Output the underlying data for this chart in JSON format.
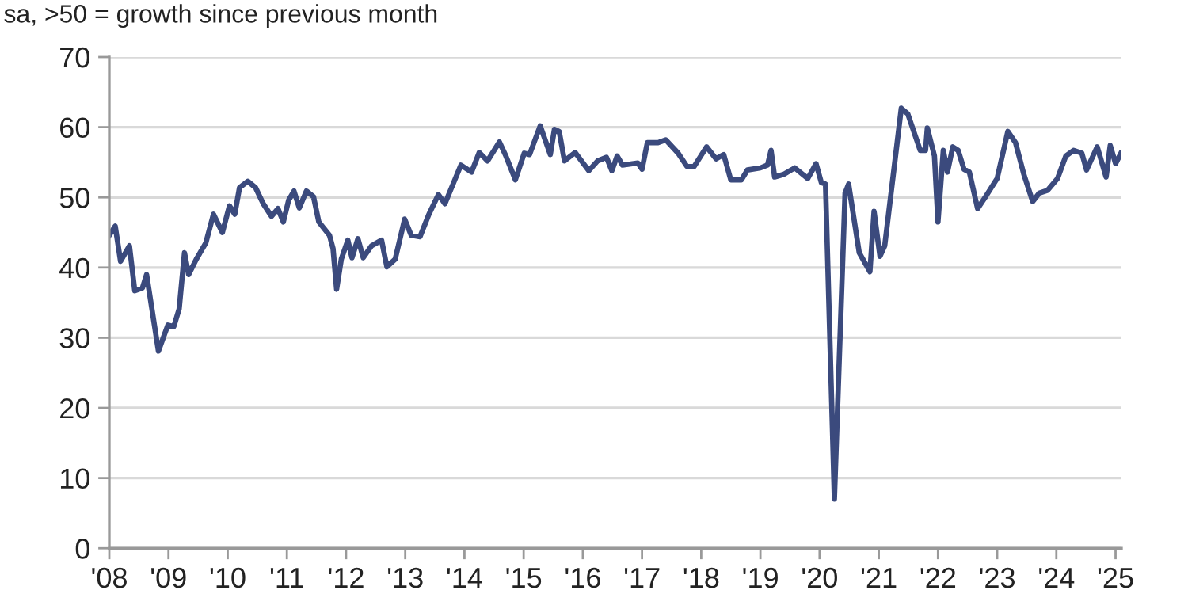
{
  "chart_data": {
    "type": "line",
    "subtitle": "sa, >50 = growth since previous month",
    "x": [
      2008.0,
      2008.1,
      2008.19,
      2008.34,
      2008.43,
      2008.56,
      2008.63,
      2008.83,
      2008.99,
      2009.09,
      2009.18,
      2009.27,
      2009.34,
      2009.47,
      2009.63,
      2009.76,
      2009.91,
      2010.03,
      2010.12,
      2010.2,
      2010.34,
      2010.47,
      2010.6,
      2010.74,
      2010.85,
      2010.94,
      2011.03,
      2011.12,
      2011.21,
      2011.33,
      2011.45,
      2011.54,
      2011.72,
      2011.78,
      2011.84,
      2011.92,
      2012.03,
      2012.1,
      2012.2,
      2012.29,
      2012.43,
      2012.6,
      2012.69,
      2012.83,
      2012.99,
      2013.1,
      2013.25,
      2013.4,
      2013.56,
      2013.67,
      2013.94,
      2014.12,
      2014.25,
      2014.39,
      2014.59,
      2014.7,
      2014.86,
      2015.01,
      2015.1,
      2015.28,
      2015.45,
      2015.52,
      2015.6,
      2015.69,
      2015.87,
      2016.1,
      2016.25,
      2016.4,
      2016.49,
      2016.58,
      2016.67,
      2016.93,
      2017.0,
      2017.09,
      2017.27,
      2017.4,
      2017.61,
      2017.76,
      2017.88,
      2018.09,
      2018.25,
      2018.38,
      2018.5,
      2018.68,
      2018.78,
      2019.0,
      2019.12,
      2019.18,
      2019.24,
      2019.4,
      2019.58,
      2019.8,
      2019.94,
      2020.03,
      2020.1,
      2020.25,
      2020.43,
      2020.49,
      2020.67,
      2020.85,
      2020.92,
      2021.02,
      2021.1,
      2021.38,
      2021.49,
      2021.7,
      2021.79,
      2021.82,
      2021.94,
      2022.0,
      2022.09,
      2022.16,
      2022.25,
      2022.34,
      2022.44,
      2022.53,
      2022.67,
      2022.82,
      2023.0,
      2023.18,
      2023.31,
      2023.45,
      2023.6,
      2023.71,
      2023.85,
      2024.02,
      2024.16,
      2024.29,
      2024.43,
      2024.51,
      2024.69,
      2024.84,
      2024.91,
      2025.0,
      2025.09
    ],
    "series": [
      {
        "color": "#3b4a7d",
        "values": [
          44.6,
          45.9,
          40.9,
          43.1,
          36.7,
          37.1,
          39.0,
          28.1,
          31.8,
          31.6,
          34.1,
          42.1,
          39.0,
          41.2,
          43.5,
          47.6,
          45.0,
          48.8,
          47.6,
          51.4,
          52.3,
          51.4,
          49.1,
          47.3,
          48.4,
          46.5,
          49.6,
          50.9,
          48.5,
          50.9,
          50.1,
          46.5,
          44.6,
          42.7,
          36.9,
          41.2,
          43.9,
          41.4,
          44.1,
          41.4,
          43.1,
          43.9,
          40.1,
          41.2,
          46.9,
          44.6,
          44.4,
          47.6,
          50.4,
          49.1,
          54.6,
          53.6,
          56.4,
          55.2,
          57.9,
          55.9,
          52.5,
          56.3,
          56.1,
          60.2,
          56.1,
          59.7,
          59.4,
          55.2,
          56.4,
          53.8,
          55.2,
          55.7,
          53.8,
          55.9,
          54.6,
          54.9,
          54.0,
          57.8,
          57.8,
          58.2,
          56.3,
          54.4,
          54.4,
          57.2,
          55.5,
          56.1,
          52.5,
          52.5,
          53.9,
          54.2,
          54.6,
          56.7,
          52.9,
          53.3,
          54.2,
          52.7,
          54.8,
          52.1,
          51.9,
          7.0,
          50.6,
          51.9,
          42.1,
          39.4,
          48.0,
          41.6,
          43.1,
          62.7,
          61.9,
          56.7,
          56.7,
          59.9,
          55.9,
          46.5,
          56.7,
          53.6,
          57.2,
          56.7,
          54.0,
          53.6,
          48.4,
          50.3,
          52.7,
          59.4,
          57.8,
          53.3,
          49.4,
          50.6,
          51.0,
          52.7,
          55.9,
          56.7,
          56.3,
          53.9,
          57.2,
          52.9,
          57.4,
          54.8,
          56.3
        ]
      }
    ],
    "xlim": [
      2008,
      2025.1
    ],
    "xticks": [
      {
        "value": 2008,
        "label": "'08"
      },
      {
        "value": 2009,
        "label": "'09"
      },
      {
        "value": 2010,
        "label": "'10"
      },
      {
        "value": 2011,
        "label": "'11"
      },
      {
        "value": 2012,
        "label": "'12"
      },
      {
        "value": 2013,
        "label": "'13"
      },
      {
        "value": 2014,
        "label": "'14"
      },
      {
        "value": 2015,
        "label": "'15"
      },
      {
        "value": 2016,
        "label": "'16"
      },
      {
        "value": 2017,
        "label": "'17"
      },
      {
        "value": 2018,
        "label": "'18"
      },
      {
        "value": 2019,
        "label": "'19"
      },
      {
        "value": 2020,
        "label": "'20"
      },
      {
        "value": 2021,
        "label": "'21"
      },
      {
        "value": 2022,
        "label": "'22"
      },
      {
        "value": 2023,
        "label": "'23"
      },
      {
        "value": 2024,
        "label": "'24"
      },
      {
        "value": 2025,
        "label": "'25"
      }
    ],
    "ylim": [
      0,
      70
    ],
    "yticks": [
      0,
      10,
      20,
      30,
      40,
      50,
      60,
      70
    ],
    "grid": "y",
    "legend": false,
    "marker": "none",
    "line_style": "solid"
  }
}
